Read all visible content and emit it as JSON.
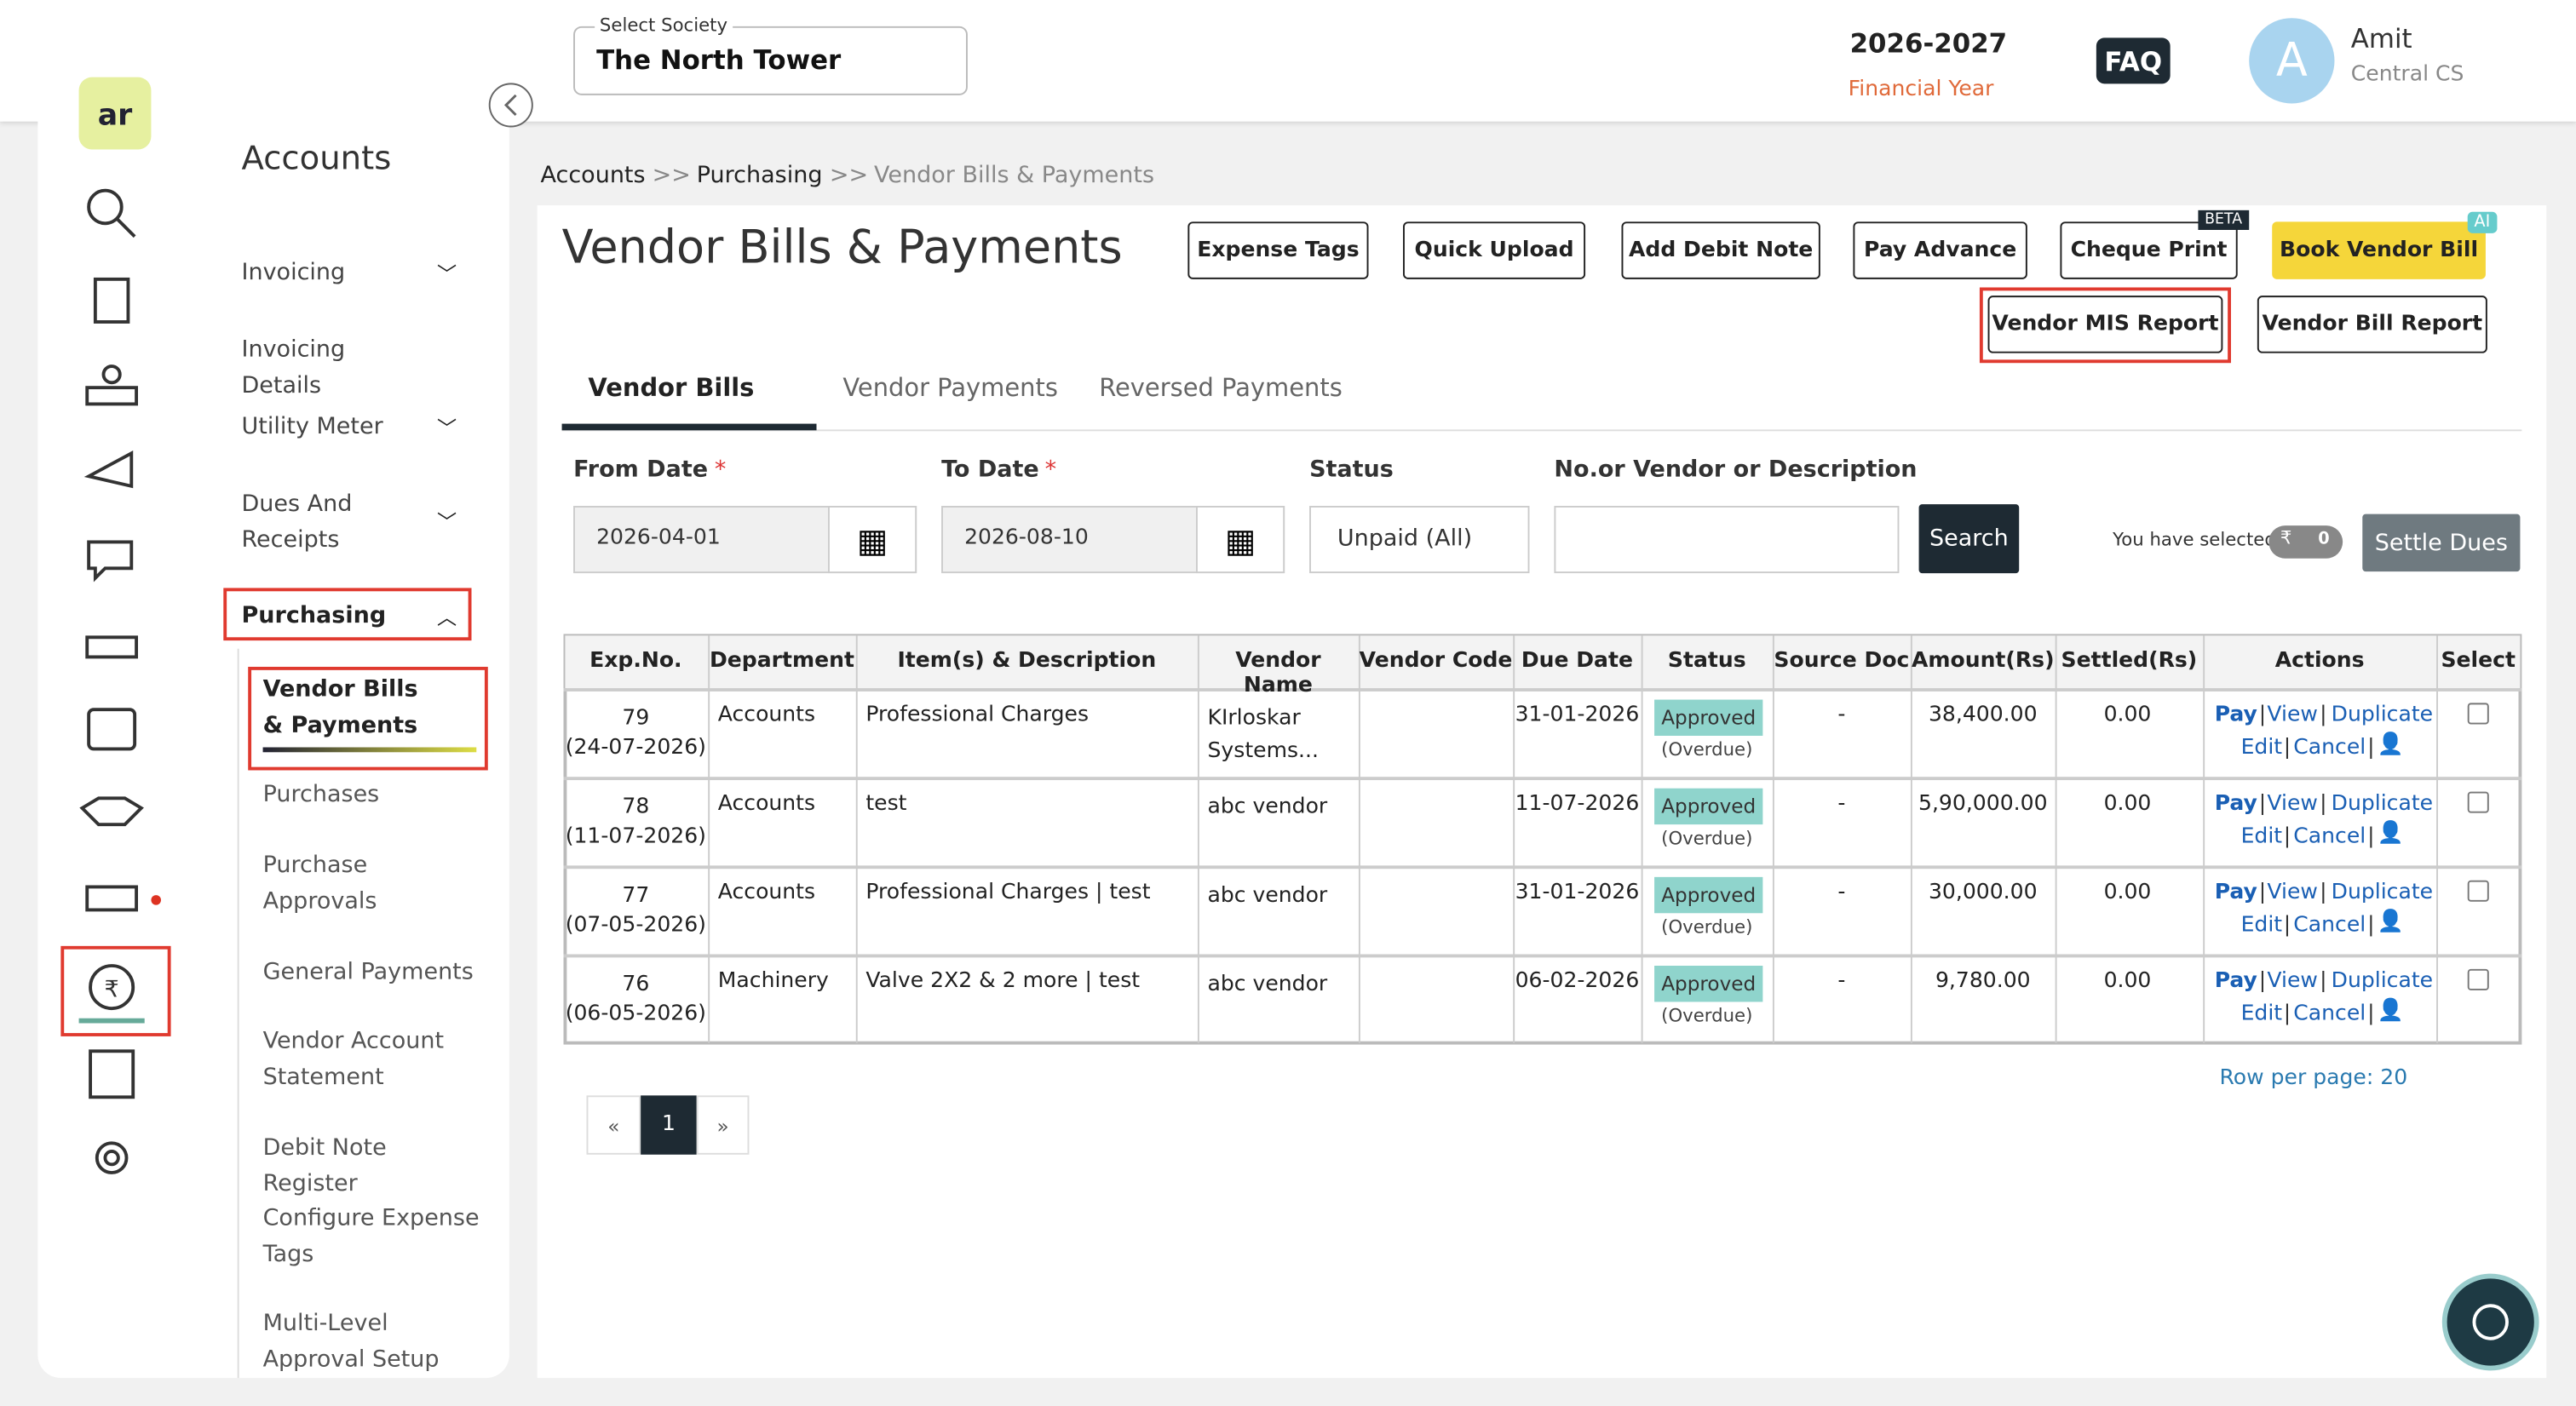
{
  "header": {
    "society_label": "Select Society",
    "society": "The North Tower",
    "year": "2026-2027",
    "year_label": "Financial Year",
    "faq": "FAQ",
    "avatar": "A",
    "user_name": "Amit",
    "user_role": "Central CS"
  },
  "sidebar": {
    "title": "Accounts",
    "items": [
      "Invoicing",
      "Invoicing Details",
      "Utility Meter",
      "Dues And Receipts",
      "Purchasing"
    ],
    "sub_items": [
      "Vendor Bills & Payments",
      "Purchases",
      "Purchase Approvals",
      "General Payments",
      "Vendor Account Statement",
      "Debit Note Register",
      "Configure Expense Tags",
      "Multi-Level Approval Setup"
    ]
  },
  "breadcrumb": {
    "items": [
      "Accounts",
      "Purchasing",
      "Vendor Bills & Payments"
    ],
    "separator": ">>"
  },
  "page": {
    "title": "Vendor Bills & Payments",
    "buttons": [
      "Expense Tags",
      "Quick Upload",
      "Add Debit Note",
      "Pay Advance",
      "Cheque Print",
      "Book Vendor Bill",
      "Vendor MIS Report",
      "Vendor Bill Report"
    ],
    "beta": "BETA",
    "ai": "AI",
    "tabs": [
      "Vendor Bills",
      "Vendor Payments",
      "Reversed Payments"
    ],
    "filters": {
      "labels": [
        "From Date",
        "To Date",
        "Status",
        "No.or Vendor or Description"
      ],
      "required": "*",
      "from": "2026-04-01",
      "to": "2026-08-10",
      "status": "Unpaid (All)",
      "search": "Search"
    },
    "selected_label": "You have selected",
    "currency": "₹",
    "selected_count": "0",
    "settle": "Settle Dues"
  },
  "table": {
    "columns": [
      "Exp.No.",
      "Department",
      "Item(s) & Description",
      "Vendor Name",
      "Vendor Code",
      "Due Date",
      "Status",
      "Source Doc",
      "Amount(Rs)",
      "Settled(Rs)",
      "Actions",
      "Select"
    ],
    "rows": [
      {
        "exp_no": "79",
        "date": "(24-07-2026)",
        "department": "Accounts",
        "items": "Professional Charges",
        "vendor": "KIrloskar Systems...",
        "due": "31-01-2026",
        "status": "Approved",
        "status_note": "(Overdue)",
        "source": "-",
        "amount": "38,400.00",
        "settled": "0.00"
      },
      {
        "exp_no": "78",
        "date": "(11-07-2026)",
        "department": "Accounts",
        "items": "test",
        "vendor": "abc vendor",
        "due": "11-07-2026",
        "status": "Approved",
        "status_note": "(Overdue)",
        "source": "-",
        "amount": "5,90,000.00",
        "settled": "0.00"
      },
      {
        "exp_no": "77",
        "date": "(07-05-2026)",
        "department": "Accounts",
        "items": "Professional Charges | test",
        "vendor": "abc vendor",
        "due": "31-01-2026",
        "status": "Approved",
        "status_note": "(Overdue)",
        "source": "-",
        "amount": "30,000.00",
        "settled": "0.00"
      },
      {
        "exp_no": "76",
        "date": "(06-05-2026)",
        "department": "Machinery",
        "items": "Valve 2X2 & 2 more | test",
        "vendor": "abc vendor",
        "due": "06-02-2026",
        "status": "Approved",
        "status_note": "(Overdue)",
        "source": "-",
        "amount": "9,780.00",
        "settled": "0.00"
      }
    ],
    "actions": [
      "Pay",
      "View",
      "Duplicate",
      "Edit",
      "Cancel"
    ],
    "action_separator": "|"
  },
  "pagination": {
    "prev": "«",
    "page": "1",
    "next": "»",
    "rows_per_page": "Row per page: 20"
  }
}
